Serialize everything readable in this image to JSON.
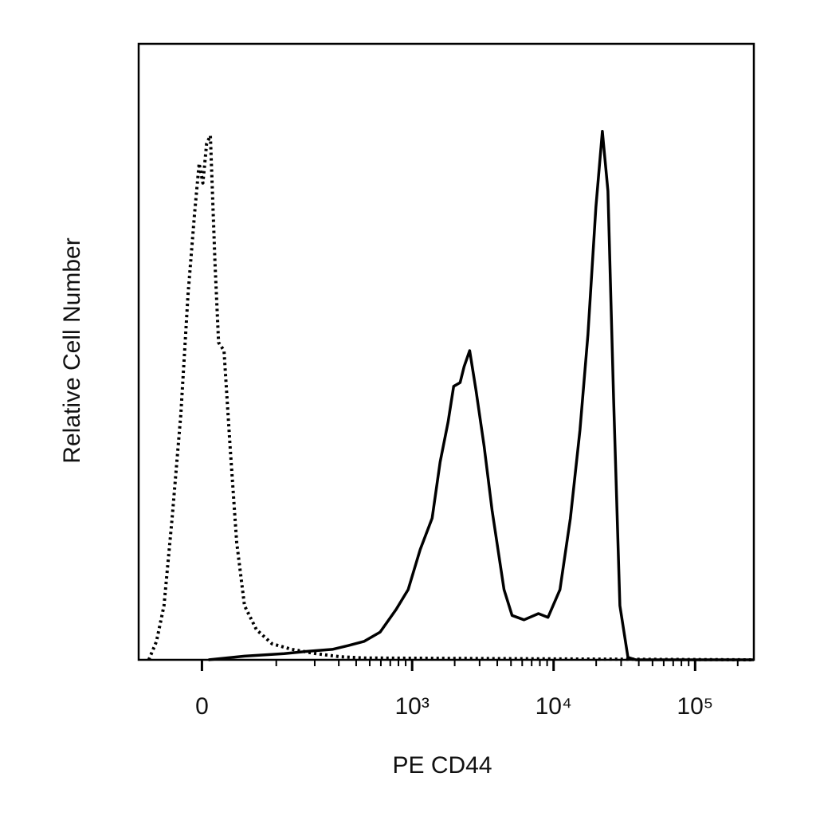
{
  "chart_data": {
    "type": "line",
    "xlabel": "PE CD44",
    "ylabel": "Relative Cell Number",
    "xscale": "asinh",
    "xlim": [
      -80,
      260000
    ],
    "ylim": [
      0,
      100
    ],
    "xticks": [
      0,
      {
        "value": 1000,
        "label": "10³"
      },
      {
        "value": 10000,
        "label": "10⁴"
      },
      {
        "value": 100000,
        "label": "10⁵"
      }
    ],
    "xminorticks": [
      100,
      200,
      300,
      400,
      500,
      600,
      700,
      800,
      900,
      2000,
      3000,
      4000,
      5000,
      6000,
      7000,
      8000,
      9000,
      20000,
      30000,
      40000,
      50000,
      60000,
      70000,
      80000,
      90000,
      200000
    ],
    "series": [
      {
        "color": "#000000",
        "linestyle": "solid",
        "x": [
          7,
          49,
          116,
          179,
          269,
          350,
          457,
          593,
          771,
          937,
          1140,
          1385,
          1577,
          1796,
          1968,
          2184,
          2330,
          2553,
          2833,
          3226,
          3674,
          4466,
          5086,
          6184,
          7817,
          9131,
          11097,
          13140,
          15360,
          17490,
          19910,
          22110,
          24210,
          26530,
          29420,
          33520,
          38170,
          260000
        ],
        "values": [
          0,
          0.6,
          1.0,
          1.4,
          1.7,
          2.3,
          3.0,
          4.5,
          8.2,
          11.4,
          17.9,
          23.0,
          32.1,
          38.6,
          44.4,
          45.0,
          47.6,
          50.2,
          43.7,
          34.7,
          24.3,
          11.4,
          7.2,
          6.5,
          7.5,
          6.9,
          11.4,
          23.0,
          37.3,
          52.8,
          73.5,
          85.8,
          76.1,
          42.4,
          8.8,
          0.4,
          0,
          0
        ]
      },
      {
        "color": "#000000",
        "linestyle": "dotted",
        "x": [
          -64,
          -53,
          -43,
          -33,
          -23,
          -15,
          -8,
          -3,
          1,
          5,
          9,
          14,
          18,
          24,
          31,
          39,
          49,
          66,
          92,
          134,
          205,
          307,
          457,
          260000
        ],
        "values": [
          0,
          3.0,
          8.8,
          23.0,
          39.8,
          59.2,
          72.2,
          80.6,
          77.4,
          83.8,
          85.1,
          64.4,
          51.5,
          50.2,
          34.7,
          19.1,
          8.8,
          4.9,
          2.6,
          1.7,
          1.0,
          0.5,
          0.3,
          0
        ]
      }
    ]
  }
}
